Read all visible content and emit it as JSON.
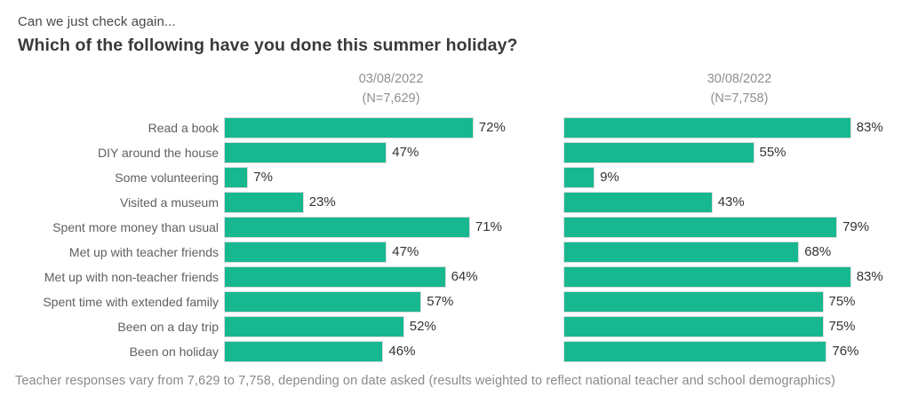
{
  "header": {
    "subtitle": "Can we just check again...",
    "title": "Which of the following have you done this summer holiday?"
  },
  "footnote": "Teacher responses vary from 7,629 to 7,758, depending on date asked (results weighted to reflect national teacher and school demographics)",
  "chart_data": {
    "type": "bar",
    "orientation": "horizontal",
    "title": "Which of the following have you done this summer holiday?",
    "subtitle": "Can we just check again...",
    "categories": [
      "Read a book",
      "DIY around the house",
      "Some volunteering",
      "Visited a museum",
      "Spent more money than usual",
      "Met up with teacher friends",
      "Met up with non-teacher friends",
      "Spent time with extended family",
      "Been on a day trip",
      "Been on holiday"
    ],
    "series": [
      {
        "name": "03/08/2022",
        "n_label": "(N=7,629)",
        "values": [
          72,
          47,
          7,
          23,
          71,
          47,
          64,
          57,
          52,
          46
        ]
      },
      {
        "name": "30/08/2022",
        "n_label": "(N=7,758)",
        "values": [
          83,
          55,
          9,
          43,
          79,
          68,
          83,
          75,
          75,
          76
        ]
      }
    ],
    "value_suffix": "%",
    "xlim": [
      0,
      100
    ],
    "bar_color": "#17b890",
    "grid": false,
    "legend_position": "column-headers",
    "footnote": "Teacher responses vary from 7,629 to 7,758, depending on date asked (results weighted to reflect national teacher and school demographics)"
  }
}
